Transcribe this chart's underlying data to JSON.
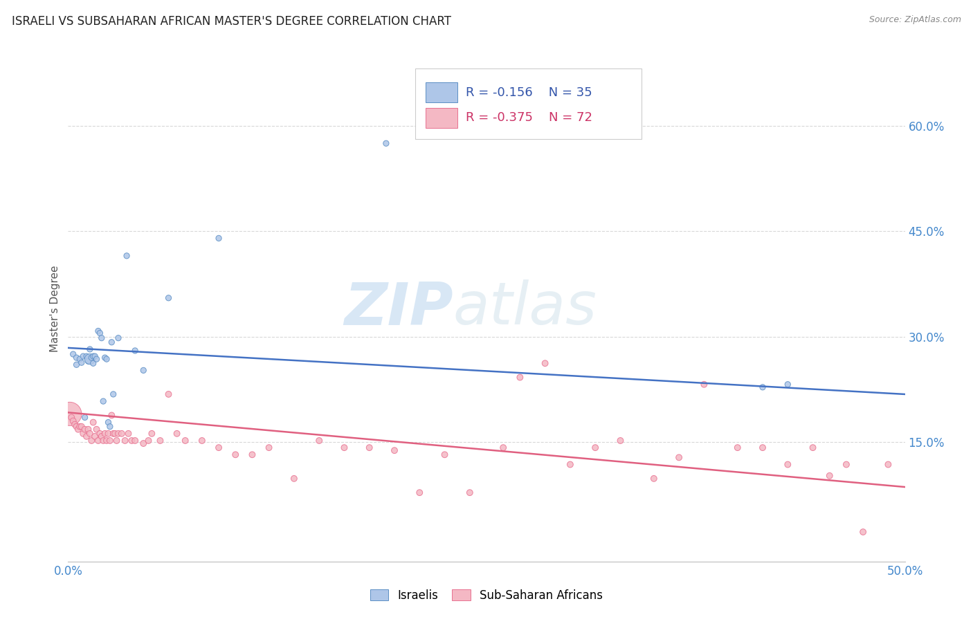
{
  "title": "ISRAELI VS SUBSAHARAN AFRICAN MASTER'S DEGREE CORRELATION CHART",
  "source": "Source: ZipAtlas.com",
  "ylabel": "Master's Degree",
  "ytick_labels": [
    "15.0%",
    "30.0%",
    "45.0%",
    "60.0%"
  ],
  "ytick_values": [
    0.15,
    0.3,
    0.45,
    0.6
  ],
  "xlim": [
    0.0,
    0.5
  ],
  "ylim": [
    -0.02,
    0.7
  ],
  "watermark_zip": "ZIP",
  "watermark_atlas": "atlas",
  "legend_blue_R": "R = -0.156",
  "legend_blue_N": "N = 35",
  "legend_pink_R": "R = -0.375",
  "legend_pink_N": "N = 72",
  "blue_color": "#aec6e8",
  "pink_color": "#f4b8c4",
  "blue_edge_color": "#5b8ec4",
  "pink_edge_color": "#e87090",
  "blue_line_color": "#4472c4",
  "pink_line_color": "#e06080",
  "blue_scatter_x": [
    0.003,
    0.005,
    0.005,
    0.007,
    0.008,
    0.009,
    0.01,
    0.011,
    0.012,
    0.013,
    0.013,
    0.014,
    0.015,
    0.015,
    0.016,
    0.017,
    0.018,
    0.019,
    0.02,
    0.021,
    0.022,
    0.023,
    0.024,
    0.025,
    0.026,
    0.027,
    0.03,
    0.035,
    0.04,
    0.045,
    0.06,
    0.09,
    0.19,
    0.415,
    0.43
  ],
  "blue_scatter_y": [
    0.275,
    0.27,
    0.26,
    0.268,
    0.263,
    0.272,
    0.185,
    0.272,
    0.265,
    0.268,
    0.282,
    0.27,
    0.272,
    0.262,
    0.272,
    0.268,
    0.308,
    0.305,
    0.298,
    0.208,
    0.27,
    0.268,
    0.178,
    0.172,
    0.292,
    0.218,
    0.298,
    0.415,
    0.28,
    0.252,
    0.355,
    0.44,
    0.575,
    0.228,
    0.232
  ],
  "blue_scatter_size": [
    35,
    35,
    35,
    35,
    35,
    35,
    35,
    35,
    35,
    120,
    35,
    35,
    35,
    35,
    35,
    35,
    35,
    35,
    35,
    35,
    35,
    35,
    35,
    35,
    35,
    35,
    35,
    35,
    35,
    35,
    35,
    35,
    35,
    35,
    35
  ],
  "pink_scatter_x": [
    0.001,
    0.002,
    0.003,
    0.004,
    0.005,
    0.006,
    0.007,
    0.008,
    0.009,
    0.01,
    0.011,
    0.012,
    0.013,
    0.014,
    0.015,
    0.016,
    0.017,
    0.018,
    0.019,
    0.02,
    0.021,
    0.022,
    0.023,
    0.024,
    0.025,
    0.026,
    0.027,
    0.028,
    0.029,
    0.03,
    0.032,
    0.034,
    0.036,
    0.038,
    0.04,
    0.045,
    0.048,
    0.05,
    0.055,
    0.06,
    0.065,
    0.07,
    0.08,
    0.09,
    0.1,
    0.11,
    0.12,
    0.135,
    0.15,
    0.165,
    0.18,
    0.195,
    0.21,
    0.225,
    0.24,
    0.26,
    0.27,
    0.285,
    0.3,
    0.315,
    0.33,
    0.35,
    0.365,
    0.38,
    0.4,
    0.415,
    0.43,
    0.445,
    0.455,
    0.465,
    0.475,
    0.49
  ],
  "pink_scatter_y": [
    0.19,
    0.185,
    0.18,
    0.175,
    0.172,
    0.168,
    0.172,
    0.172,
    0.162,
    0.168,
    0.158,
    0.168,
    0.162,
    0.152,
    0.178,
    0.158,
    0.168,
    0.152,
    0.162,
    0.158,
    0.152,
    0.162,
    0.152,
    0.162,
    0.152,
    0.188,
    0.162,
    0.162,
    0.152,
    0.162,
    0.162,
    0.152,
    0.162,
    0.152,
    0.152,
    0.148,
    0.152,
    0.162,
    0.152,
    0.218,
    0.162,
    0.152,
    0.152,
    0.142,
    0.132,
    0.132,
    0.142,
    0.098,
    0.152,
    0.142,
    0.142,
    0.138,
    0.078,
    0.132,
    0.078,
    0.142,
    0.242,
    0.262,
    0.118,
    0.142,
    0.152,
    0.098,
    0.128,
    0.232,
    0.142,
    0.142,
    0.118,
    0.142,
    0.102,
    0.118,
    0.022,
    0.118
  ],
  "pink_scatter_size_base": 40,
  "pink_scatter_size_large": 600,
  "blue_line_y_start": 0.284,
  "blue_line_y_end": 0.218,
  "pink_line_y_start": 0.192,
  "pink_line_y_end": 0.086,
  "grid_color": "#d8d8d8",
  "background_color": "#ffffff",
  "title_color": "#222222",
  "axis_tick_color": "#4488cc",
  "ylabel_color": "#555555"
}
